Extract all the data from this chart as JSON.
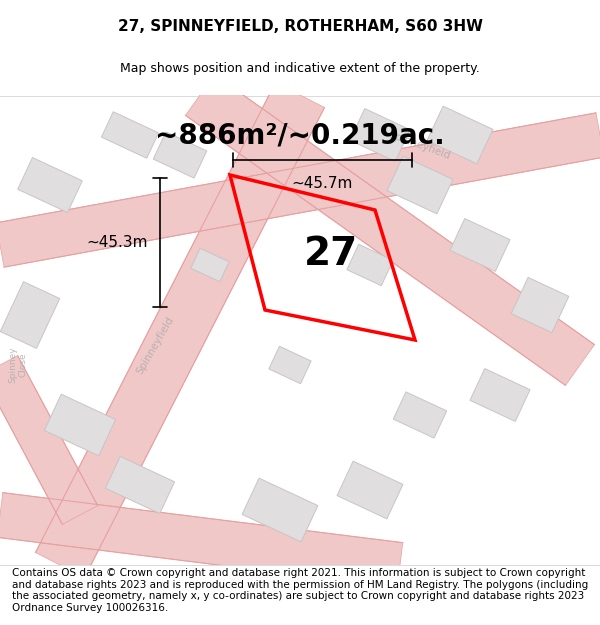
{
  "title": "27, SPINNEYFIELD, ROTHERHAM, S60 3HW",
  "subtitle": "Map shows position and indicative extent of the property.",
  "area_text": "~886m²/~0.219ac.",
  "number_label": "27",
  "dim_h": "~45.3m",
  "dim_w": "~45.7m",
  "footer": "Contains OS data © Crown copyright and database right 2021. This information is subject to Crown copyright and database rights 2023 and is reproduced with the permission of HM Land Registry. The polygons (including the associated geometry, namely x, y co-ordinates) are subject to Crown copyright and database rights 2023 Ordnance Survey 100026316.",
  "bg_color": "#f7f5f5",
  "road_color": "#f0c8c8",
  "road_line_color": "#e8a0a0",
  "building_fill": "#e0dede",
  "building_edge": "#c8c5c5",
  "plot_color": "#ff0000",
  "title_fontsize": 11,
  "subtitle_fontsize": 9,
  "area_fontsize": 20,
  "number_fontsize": 28,
  "dim_fontsize": 11,
  "footer_fontsize": 7.5
}
